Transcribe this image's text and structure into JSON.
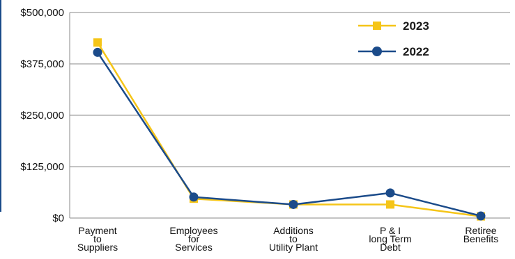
{
  "chart_data": {
    "type": "line",
    "categories": [
      [
        "Payment",
        "to",
        "Suppliers"
      ],
      [
        "Employees",
        "for",
        "Services"
      ],
      [
        "Additions",
        "to",
        "Utility Plant"
      ],
      [
        "P & I",
        "long Term",
        "Debt"
      ],
      [
        "Retiree",
        "Benefits"
      ]
    ],
    "y_tick_labels": [
      "$0",
      "$125,000",
      "$250,000",
      "$375,000",
      "$500,000"
    ],
    "ylim": [
      0,
      500000
    ],
    "grid": true,
    "legend_position": "top-right",
    "series": [
      {
        "name": "2023",
        "color": "#F5C518",
        "marker": "square",
        "values": [
          427000,
          47000,
          33000,
          33000,
          4000
        ]
      },
      {
        "name": "2022",
        "color": "#1B4B8A",
        "marker": "circle",
        "values": [
          403000,
          51000,
          33000,
          61000,
          5000
        ]
      }
    ],
    "frame_color": "#1B4B8A"
  }
}
